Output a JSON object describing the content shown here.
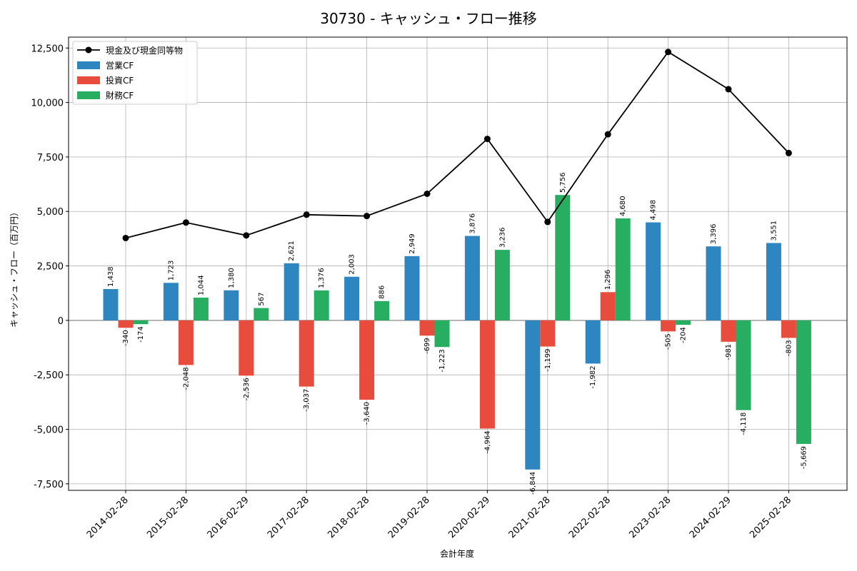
{
  "chart_data": {
    "type": "bar",
    "title": "30730 - キャッシュ・フロー推移",
    "xlabel": "会計年度",
    "ylabel": "キャッシュ・フロー（百万円）",
    "ylim": [
      -7800,
      13000
    ],
    "yticks": [
      -7500,
      -5000,
      -2500,
      0,
      2500,
      5000,
      7500,
      10000,
      12500
    ],
    "ytick_labels": [
      "-7,500",
      "-5,000",
      "-2,500",
      "0",
      "2,500",
      "5,000",
      "7,500",
      "10,000",
      "12,500"
    ],
    "grid": true,
    "legend_position": "top-left",
    "categories": [
      "2014-02-28",
      "2015-02-28",
      "2016-02-29",
      "2017-02-28",
      "2018-02-28",
      "2019-02-28",
      "2020-02-29",
      "2021-02-28",
      "2022-02-28",
      "2023-02-28",
      "2024-02-29",
      "2025-02-28"
    ],
    "series": [
      {
        "name": "営業CF",
        "type": "bar",
        "color": "#2e86c1",
        "values": [
          1438,
          1723,
          1380,
          2621,
          2003,
          2949,
          3876,
          -6844,
          -1982,
          4498,
          3396,
          3551
        ],
        "labels": [
          "1,438",
          "1,723",
          "1,380",
          "2,621",
          "2,003",
          "2,949",
          "3,876",
          "-6,844",
          "-1,982",
          "4,498",
          "3,396",
          "3,551"
        ]
      },
      {
        "name": "投資CF",
        "type": "bar",
        "color": "#e74c3c",
        "values": [
          -340,
          -2048,
          -2536,
          -3037,
          -3640,
          -699,
          -4964,
          -1199,
          1296,
          -505,
          -981,
          -803
        ],
        "labels": [
          "-340",
          "-2,048",
          "-2,536",
          "-3,037",
          "-3,640",
          "-699",
          "-4,964",
          "-1,199",
          "1,296",
          "-505",
          "-981",
          "-803"
        ]
      },
      {
        "name": "財務CF",
        "type": "bar",
        "color": "#27ae60",
        "values": [
          -174,
          1044,
          567,
          1376,
          886,
          -1223,
          3236,
          5756,
          4680,
          -204,
          -4118,
          -5669
        ],
        "labels": [
          "-174",
          "1,044",
          "567",
          "1,376",
          "886",
          "-1,223",
          "3,236",
          "5,756",
          "4,680",
          "-204",
          "-4,118",
          "-5,669"
        ]
      },
      {
        "name": "現金及び現金同等物",
        "type": "line",
        "color": "#000000",
        "values": [
          3780,
          4490,
          3900,
          4850,
          4790,
          5810,
          8330,
          4520,
          8540,
          12320,
          10610,
          7680
        ]
      }
    ]
  }
}
